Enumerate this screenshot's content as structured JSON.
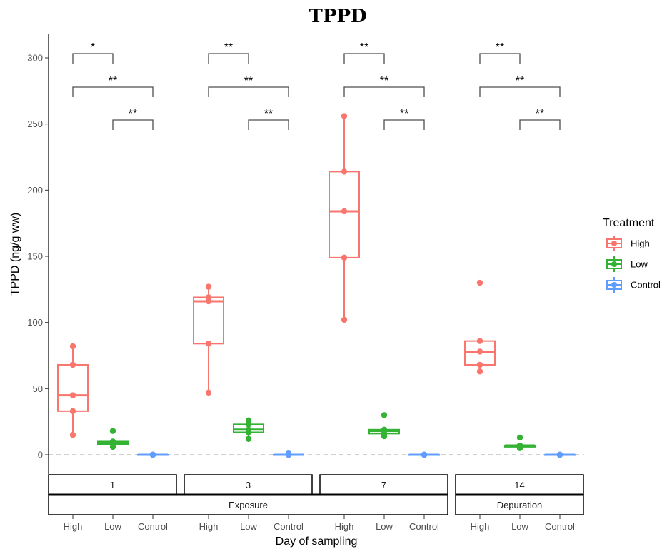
{
  "chart_data": {
    "type": "box",
    "title": "TPPD",
    "xlabel": "Day of sampling",
    "ylabel": "TPPD (ng/g ww)",
    "ylim": [
      -15,
      318
    ],
    "yticks": [
      0,
      50,
      100,
      150,
      200,
      250,
      300
    ],
    "grid": false,
    "reference_line": 0,
    "legend": {
      "title": "Treatment",
      "position": "right",
      "entries": [
        "High",
        "Low",
        "Control"
      ]
    },
    "colors": {
      "High": "#F8766D",
      "Low": "#33B233",
      "Control": "#619CFF"
    },
    "categories": [
      "High",
      "Low",
      "Control"
    ],
    "phases": [
      {
        "label": "Exposure",
        "days": [
          "1",
          "3",
          "7"
        ]
      },
      {
        "label": "Depuration",
        "days": [
          "14"
        ]
      }
    ],
    "panels": [
      {
        "day": "1",
        "groups": [
          {
            "treatment": "High",
            "q1": 33,
            "median": 45,
            "q3": 68,
            "whisker_low": 15,
            "whisker_high": 82,
            "points": [
              82,
              68,
              45,
              33,
              15
            ]
          },
          {
            "treatment": "Low",
            "q1": 8,
            "median": 9,
            "q3": 10,
            "whisker_low": 6,
            "whisker_high": 10,
            "points": [
              18,
              10,
              9,
              8,
              6
            ]
          },
          {
            "treatment": "Control",
            "q1": 0,
            "median": 0,
            "q3": 0,
            "whisker_low": 0,
            "whisker_high": 0,
            "points": [
              0,
              0,
              0,
              0,
              0
            ]
          }
        ],
        "significance": [
          {
            "from": "High",
            "to": "Low",
            "label": "*"
          },
          {
            "from": "High",
            "to": "Control",
            "label": "**"
          },
          {
            "from": "Low",
            "to": "Control",
            "label": "**"
          }
        ]
      },
      {
        "day": "3",
        "groups": [
          {
            "treatment": "High",
            "q1": 84,
            "median": 116,
            "q3": 119,
            "whisker_low": 47,
            "whisker_high": 127,
            "points": [
              127,
              119,
              116,
              84,
              47
            ]
          },
          {
            "treatment": "Low",
            "q1": 17,
            "median": 19,
            "q3": 23,
            "whisker_low": 12,
            "whisker_high": 26,
            "points": [
              26,
              23,
              19,
              17,
              12
            ]
          },
          {
            "treatment": "Control",
            "q1": 0,
            "median": 0,
            "q3": 0,
            "whisker_low": 0,
            "whisker_high": 0,
            "points": [
              1,
              0,
              0,
              0,
              0
            ]
          }
        ],
        "significance": [
          {
            "from": "High",
            "to": "Low",
            "label": "**"
          },
          {
            "from": "High",
            "to": "Control",
            "label": "**"
          },
          {
            "from": "Low",
            "to": "Control",
            "label": "**"
          }
        ]
      },
      {
        "day": "7",
        "groups": [
          {
            "treatment": "High",
            "q1": 149,
            "median": 184,
            "q3": 214,
            "whisker_low": 102,
            "whisker_high": 256,
            "points": [
              256,
              214,
              184,
              149,
              102
            ]
          },
          {
            "treatment": "Low",
            "q1": 16,
            "median": 18,
            "q3": 19,
            "whisker_low": 14,
            "whisker_high": 19,
            "points": [
              30,
              19,
              18,
              16,
              14
            ]
          },
          {
            "treatment": "Control",
            "q1": 0,
            "median": 0,
            "q3": 0,
            "whisker_low": 0,
            "whisker_high": 0,
            "points": [
              0,
              0,
              0,
              0,
              0
            ]
          }
        ],
        "significance": [
          {
            "from": "High",
            "to": "Low",
            "label": "**"
          },
          {
            "from": "High",
            "to": "Control",
            "label": "**"
          },
          {
            "from": "Low",
            "to": "Control",
            "label": "**"
          }
        ]
      },
      {
        "day": "14",
        "groups": [
          {
            "treatment": "High",
            "q1": 68,
            "median": 78,
            "q3": 86,
            "whisker_low": 63,
            "whisker_high": 86,
            "points": [
              130,
              86,
              78,
              68,
              63
            ]
          },
          {
            "treatment": "Low",
            "q1": 6,
            "median": 7,
            "q3": 7,
            "whisker_low": 5,
            "whisker_high": 8,
            "points": [
              13,
              7,
              7,
              6,
              5
            ]
          },
          {
            "treatment": "Control",
            "q1": 0,
            "median": 0,
            "q3": 0,
            "whisker_low": 0,
            "whisker_high": 0,
            "points": [
              0,
              0,
              0,
              0,
              0
            ]
          }
        ],
        "significance": [
          {
            "from": "High",
            "to": "Low",
            "label": "**"
          },
          {
            "from": "High",
            "to": "Control",
            "label": "**"
          },
          {
            "from": "Low",
            "to": "Control",
            "label": "**"
          }
        ]
      }
    ]
  }
}
